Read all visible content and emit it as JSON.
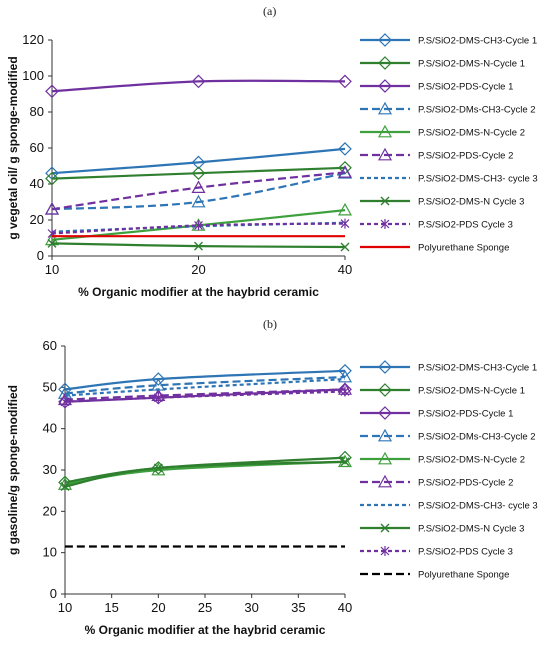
{
  "chart_data": [
    {
      "type": "line",
      "panel_label": "(a)",
      "xlabel": "% Organic modifier at the haybrid ceramic",
      "ylabel": "g vegetal oil/ g sponge-modified",
      "x": [
        10,
        20,
        40
      ],
      "xlim": [
        10,
        40
      ],
      "xticks": [
        10,
        20,
        40
      ],
      "xscale": "categorical-spaced",
      "ylim": [
        0,
        120
      ],
      "yticks": [
        0,
        20,
        40,
        60,
        80,
        100,
        120
      ],
      "grid": false,
      "legend_position": "right",
      "series": [
        {
          "name": "P.S/SiO2-DMS-CH3-Cycle 1",
          "values": [
            46,
            52,
            59.5
          ],
          "color": "#2E75B6",
          "dash": "solid",
          "marker": "diamond-open"
        },
        {
          "name": "P.S/SiO2-DMS-N-Cycle 1",
          "values": [
            43,
            46,
            49
          ],
          "color": "#2F7F2F",
          "dash": "solid",
          "marker": "diamond-open"
        },
        {
          "name": "P.S/SiO2-PDS-Cycle 1",
          "values": [
            91.5,
            97,
            97
          ],
          "color": "#7030A0",
          "dash": "solid",
          "marker": "diamond-open"
        },
        {
          "name": "P.S/SiO2-DMs-CH3-Cycle 2",
          "values": [
            26,
            30,
            46
          ],
          "color": "#2E75B6",
          "dash": "longdash",
          "marker": "triangle-open"
        },
        {
          "name": "P.S/SiO2-DMS-N-Cycle 2",
          "values": [
            9,
            17,
            25.5
          ],
          "color": "#3DA03D",
          "dash": "solid",
          "marker": "triangle-open"
        },
        {
          "name": "P.S/SiO2-PDS-Cycle 2",
          "values": [
            26,
            38,
            46.5
          ],
          "color": "#7030A0",
          "dash": "longdash",
          "marker": "triangle-open"
        },
        {
          "name": "P.S/SiO2-DMS-CH3- cycle 3",
          "values": [
            13.5,
            16.5,
            18.5
          ],
          "color": "#2E75B6",
          "dash": "shortdash",
          "marker": "none"
        },
        {
          "name": "P.S/SiO2-DMS-N Cycle 3",
          "values": [
            7,
            5.5,
            5
          ],
          "color": "#2F7F2F",
          "dash": "solid",
          "marker": "x"
        },
        {
          "name": "P.S/SiO2-PDS Cycle 3",
          "values": [
            12.5,
            17,
            18
          ],
          "color": "#7030A0",
          "dash": "shortdash",
          "marker": "star"
        },
        {
          "name": "Polyurethane Sponge",
          "values": [
            11,
            11,
            11
          ],
          "color": "#E00000",
          "dash": "solid",
          "marker": "none"
        }
      ]
    },
    {
      "type": "line",
      "panel_label": "(b)",
      "xlabel": "% Organic modifier at the haybrid ceramic",
      "ylabel": "g gasoline/g sponge-modified",
      "x": [
        10,
        20,
        40
      ],
      "xlim": [
        10,
        40
      ],
      "xticks": [
        10,
        15,
        20,
        25,
        30,
        35,
        40
      ],
      "xscale": "linear",
      "ylim": [
        0,
        60
      ],
      "yticks": [
        0,
        10,
        20,
        30,
        40,
        50,
        60
      ],
      "grid": false,
      "legend_position": "right",
      "series": [
        {
          "name": "P.S/SiO2-DMS-CH3-Cycle 1",
          "values": [
            49.5,
            52,
            54
          ],
          "color": "#2E75B6",
          "dash": "solid",
          "marker": "diamond-open"
        },
        {
          "name": "P.S/SiO2-DMS-N-Cycle 1",
          "values": [
            27,
            30.5,
            33
          ],
          "color": "#2F7F2F",
          "dash": "solid",
          "marker": "diamond-open"
        },
        {
          "name": "P.S/SiO2-PDS-Cycle 1",
          "values": [
            46.5,
            47.5,
            49.5
          ],
          "color": "#7030A0",
          "dash": "solid",
          "marker": "diamond-open"
        },
        {
          "name": "P.S/SiO2-DMs-CH3-Cycle 2",
          "values": [
            48.5,
            50.5,
            52.5
          ],
          "color": "#2E75B6",
          "dash": "longdash",
          "marker": "triangle-open"
        },
        {
          "name": "P.S/SiO2-DMS-N-Cycle 2",
          "values": [
            26.5,
            30,
            32
          ],
          "color": "#3DA03D",
          "dash": "solid",
          "marker": "triangle-open"
        },
        {
          "name": "P.S/SiO2-PDS-Cycle 2",
          "values": [
            47,
            48,
            49.5
          ],
          "color": "#7030A0",
          "dash": "longdash",
          "marker": "triangle-open"
        },
        {
          "name": "P.S/SiO2-DMS-CH3- cycle 3",
          "values": [
            48,
            49.5,
            52
          ],
          "color": "#2E75B6",
          "dash": "shortdash",
          "marker": "none"
        },
        {
          "name": "P.S/SiO2-DMS-N Cycle 3",
          "values": [
            26,
            30.5,
            32
          ],
          "color": "#2F7F2F",
          "dash": "solid",
          "marker": "x"
        },
        {
          "name": "P.S/SiO2-PDS Cycle 3",
          "values": [
            46.5,
            47.5,
            49
          ],
          "color": "#7030A0",
          "dash": "shortdash",
          "marker": "star"
        },
        {
          "name": "Polyurethane Sponge",
          "values": [
            11.5,
            11.5,
            11.5
          ],
          "color": "#000000",
          "dash": "longdash",
          "marker": "none"
        }
      ]
    }
  ]
}
